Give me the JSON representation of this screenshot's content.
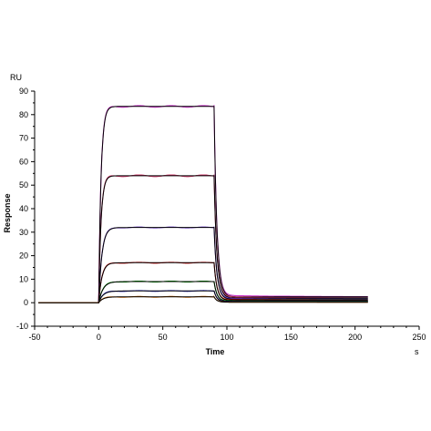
{
  "chart_data": {
    "type": "line",
    "title": "",
    "xlabel": "Time",
    "ylabel": "Response",
    "x_unit": "s",
    "y_unit": "RU",
    "xlim": [
      -50,
      250
    ],
    "ylim": [
      -10,
      90
    ],
    "x_ticks": [
      "-50",
      "0",
      "50",
      "100",
      "150",
      "200",
      "250"
    ],
    "y_ticks": [
      "-10",
      "0",
      "10",
      "20",
      "30",
      "40",
      "50",
      "60",
      "70",
      "80",
      "90"
    ],
    "grid": false,
    "legend": "none",
    "association_start": 0,
    "dissociation_start": 90,
    "end": 210,
    "series": [
      {
        "plateau": 83.5,
        "residual": 2.5,
        "color": "#cc33cc"
      },
      {
        "plateau": 54.0,
        "residual": 2.0,
        "color": "#cc3366"
      },
      {
        "plateau": 32.0,
        "residual": 1.5,
        "color": "#6633cc"
      },
      {
        "plateau": 17.0,
        "residual": 1.0,
        "color": "#cc0000"
      },
      {
        "plateau": 9.0,
        "residual": 0.6,
        "color": "#009900"
      },
      {
        "plateau": 5.0,
        "residual": 0.4,
        "color": "#3333cc"
      },
      {
        "plateau": 2.5,
        "residual": 0.2,
        "color": "#cc6600"
      }
    ]
  }
}
